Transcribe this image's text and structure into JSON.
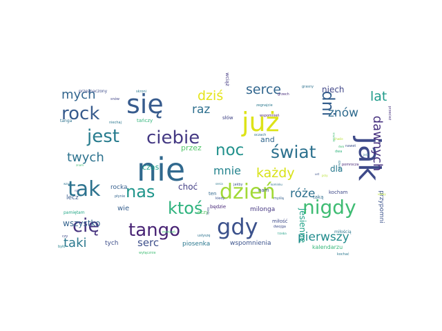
{
  "words": [
    {
      "text": "nie",
      "color": "#31698e",
      "size": 5.6
    },
    {
      "text": "się",
      "color": "#375b8d",
      "size": 4.6
    },
    {
      "text": "już",
      "color": "#dde318",
      "size": 4.4
    },
    {
      "text": "jak",
      "color": "#3e4a89",
      "size": 5.3,
      "vertical": true
    },
    {
      "text": "tak",
      "color": "#2c728e",
      "size": 3.4
    },
    {
      "text": "gdy",
      "color": "#3b518b",
      "size": 3.6
    },
    {
      "text": "dzień",
      "color": "#a2da37",
      "size": 3.4
    },
    {
      "text": "nigdy",
      "color": "#3fbc73",
      "size": 3.1
    },
    {
      "text": "ciebie",
      "color": "#443983",
      "size": 2.9
    },
    {
      "text": "jest",
      "color": "#287c8e",
      "size": 2.9
    },
    {
      "text": "świat",
      "color": "#2c718e",
      "size": 2.8
    },
    {
      "text": "rock",
      "color": "#375b8d",
      "size": 2.9
    },
    {
      "text": "tango",
      "color": "#482374",
      "size": 2.8
    },
    {
      "text": "cię",
      "color": "#46327e",
      "size": 2.9
    },
    {
      "text": "ktoś",
      "color": "#2db27d",
      "size": 2.6
    },
    {
      "text": "nas",
      "color": "#1f958b",
      "size": 2.7
    },
    {
      "text": "noc",
      "color": "#21918c",
      "size": 2.6
    },
    {
      "text": "dni",
      "color": "#355f8d",
      "size": 2.5,
      "vertical": true
    },
    {
      "text": "każdy",
      "color": "#d8e219",
      "size": 2.1
    },
    {
      "text": "dziś",
      "color": "#e5e419",
      "size": 2.1
    },
    {
      "text": "serce",
      "color": "#31668e",
      "size": 2.1
    },
    {
      "text": "lat",
      "color": "#1e9b8a",
      "size": 2.1
    },
    {
      "text": "znów",
      "color": "#2f6b8e",
      "size": 1.9
    },
    {
      "text": "raz",
      "color": "#2e6f8e",
      "size": 1.9
    },
    {
      "text": "mych",
      "color": "#32658e",
      "size": 2.0
    },
    {
      "text": "twych",
      "color": "#2c728e",
      "size": 1.9
    },
    {
      "text": "mnie",
      "color": "#25848e",
      "size": 1.8
    },
    {
      "text": "dawnych",
      "color": "#46307e",
      "size": 2.0,
      "vertical": true
    },
    {
      "text": "pierwszy",
      "color": "#228c8d",
      "size": 1.9
    },
    {
      "text": "taki",
      "color": "#2a788e",
      "size": 1.9
    },
    {
      "text": "róże",
      "color": "#2d708e",
      "size": 1.8
    },
    {
      "text": "serc",
      "color": "#3d4e8a",
      "size": 1.6
    },
    {
      "text": "jesienne",
      "color": "#1fa187",
      "size": 1.3,
      "vertical": true
    },
    {
      "text": "wszystko",
      "color": "#33628d",
      "size": 1.2
    },
    {
      "text": "niech",
      "color": "#404688",
      "size": 1.2
    },
    {
      "text": "choć",
      "color": "#433e85",
      "size": 1.2
    },
    {
      "text": "dla",
      "color": "#29798e",
      "size": 1.2
    },
    {
      "text": "czas",
      "color": "#1fa088",
      "size": 1.1
    },
    {
      "text": "przez",
      "color": "#52c569",
      "size": 1.1
    },
    {
      "text": "and",
      "color": "#31668e",
      "size": 1.1
    },
    {
      "text": "wspomnienia",
      "color": "#3b528b",
      "size": 0.85
    },
    {
      "text": "przypomni",
      "color": "#3b528b",
      "size": 0.85,
      "vertical": true
    },
    {
      "text": "kalendarzu",
      "color": "#35b779",
      "size": 0.75
    },
    {
      "text": "piosenka",
      "color": "#2a778e",
      "size": 0.8
    },
    {
      "text": "milonga",
      "color": "#453781",
      "size": 0.8
    },
    {
      "text": "tych",
      "color": "#3d4e8a",
      "size": 0.8
    },
    {
      "text": "wie",
      "color": "#355e8d",
      "size": 0.9
    },
    {
      "text": "rocka",
      "color": "#355f8d",
      "size": 0.8
    },
    {
      "text": "lecz",
      "color": "#38598c",
      "size": 0.8
    },
    {
      "text": "pamiętam",
      "color": "#21a685",
      "size": 0.55
    },
    {
      "text": "tańczy",
      "color": "#31b57b",
      "size": 0.7
    },
    {
      "text": "kocham",
      "color": "#3e4989",
      "size": 0.6
    },
    {
      "text": "oczy",
      "color": "#58c765",
      "size": 0.65
    },
    {
      "text": "będzie",
      "color": "#482878",
      "size": 0.6
    },
    {
      "text": "słów",
      "color": "#414487",
      "size": 0.6
    },
    {
      "text": "ten",
      "color": "#31688e",
      "size": 0.6
    },
    {
      "text": "nam",
      "color": "#3c508b",
      "size": 0.6
    },
    {
      "text": "taką",
      "color": "#2e6e8e",
      "size": 0.6
    },
    {
      "text": "miłość",
      "color": "#3e4a89",
      "size": 0.6
    },
    {
      "text": "miłością",
      "color": "#2a768e",
      "size": 0.55
    },
    {
      "text": "wciąż",
      "color": "#443a83",
      "size": 0.6,
      "vertical": true
    },
    {
      "text": "przeznaczony",
      "color": "#3e4c8a",
      "size": 0.5
    },
    {
      "text": "wspomnień",
      "color": "#481c6e",
      "size": 0.45
    },
    {
      "text": "skroni",
      "color": "#2a788e",
      "size": 0.45
    },
    {
      "text": "grzech",
      "color": "#472c7a",
      "size": 0.45
    },
    {
      "text": "zegnajcie",
      "color": "#2a788e",
      "size": 0.45
    },
    {
      "text": "grasny",
      "color": "#2c718e",
      "size": 0.4
    },
    {
      "text": "snów",
      "color": "#414487",
      "size": 0.4
    },
    {
      "text": "tanga",
      "color": "#2c728e",
      "size": 0.5
    },
    {
      "text": "niechaj",
      "color": "#2a768e",
      "size": 0.45
    },
    {
      "text": "przecież",
      "color": "#46327e",
      "size": 0.4,
      "vertical": true
    },
    {
      "text": "snutek",
      "color": "#3fbc73",
      "size": 0.35,
      "vertical": true
    },
    {
      "text": "pomrocza",
      "color": "#482878",
      "size": 0.4
    },
    {
      "text": "nawet",
      "color": "#3b528b",
      "size": 0.4
    },
    {
      "text": "dwa",
      "color": "#2fb47c",
      "size": 0.4
    },
    {
      "text": "oczach",
      "color": "#2c728e",
      "size": 0.45
    },
    {
      "text": "kiedy",
      "color": "#3b528b",
      "size": 0.45
    },
    {
      "text": "myślą",
      "color": "#355f8d",
      "size": 0.45
    },
    {
      "text": "dwojga",
      "color": "#3e4c8a",
      "size": 0.45
    },
    {
      "text": "marzeń",
      "color": "#3fbc73",
      "size": 0.4
    },
    {
      "text": "usłyszę",
      "color": "#2c728e",
      "size": 0.4
    },
    {
      "text": "płynie",
      "color": "#32658e",
      "size": 0.4
    },
    {
      "text": "wyłącznie",
      "color": "#3fbc73",
      "size": 0.45
    },
    {
      "text": "kominku",
      "color": "#2c728e",
      "size": 0.35
    },
    {
      "text": "trzeba",
      "color": "#1fa187",
      "size": 0.35
    },
    {
      "text": "jakby",
      "color": "#3b528b",
      "size": 0.4
    },
    {
      "text": "serca",
      "color": "#2a788e",
      "size": 0.35
    },
    {
      "text": "kochać",
      "color": "#2a778e",
      "size": 0.4
    },
    {
      "text": "czy",
      "color": "#3e4a89",
      "size": 0.45
    },
    {
      "text": "było",
      "color": "#26828e",
      "size": 0.45
    },
    {
      "text": "wzos",
      "color": "#2c728e",
      "size": 0.35
    },
    {
      "text": "znam",
      "color": "#3fbc73",
      "size": 0.35
    },
    {
      "text": "roli",
      "color": "#3e4c8a",
      "size": 0.35
    },
    {
      "text": "przy",
      "color": "#b5de2b",
      "size": 0.35
    },
    {
      "text": "ust",
      "color": "#3b528b",
      "size": 0.35
    },
    {
      "text": "ulewy",
      "color": "#b5de2b",
      "size": 0.35
    },
    {
      "text": "chwile",
      "color": "#b5de2b",
      "size": 0.35
    },
    {
      "text": "dźwięki",
      "color": "#2a788e",
      "size": 0.35,
      "vertical": true
    },
    {
      "text": "kiedy",
      "color": "#3e4c8a",
      "size": 0.35,
      "vertical": true
    },
    {
      "text": "jeśli",
      "color": "#2c728e",
      "size": 0.35
    },
    {
      "text": "dwa",
      "color": "#3fbc73",
      "size": 0.35
    }
  ]
}
